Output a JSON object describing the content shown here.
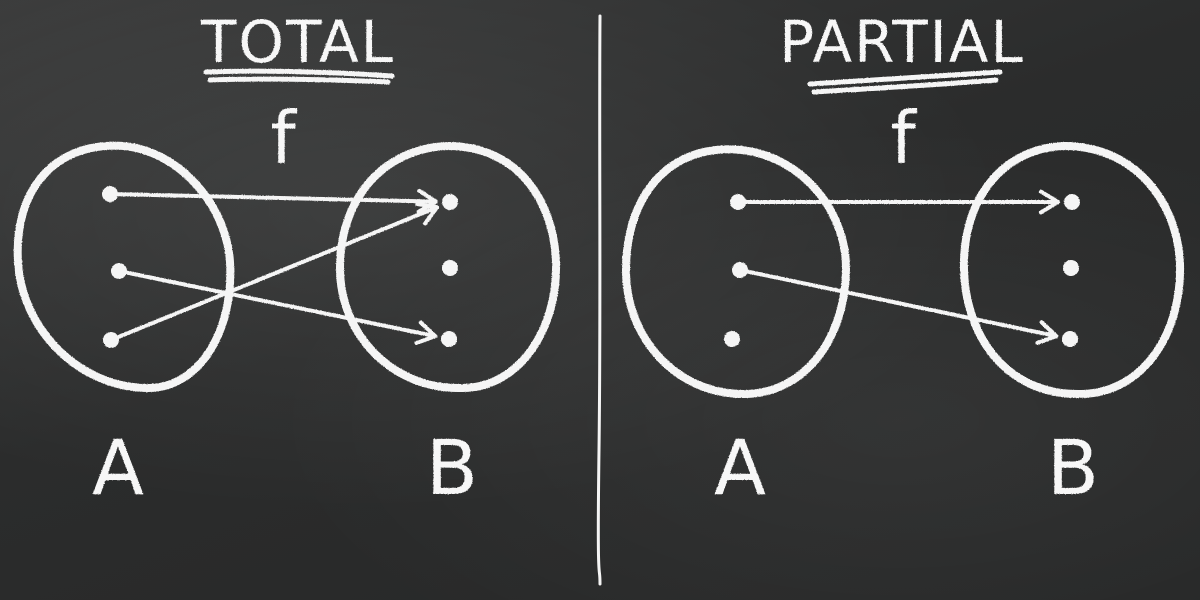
{
  "panels": [
    {
      "title": "TOTAL",
      "function_label": "f",
      "domain_label": "A",
      "codomain_label": "B",
      "mappings": [
        [
          0,
          0
        ],
        [
          1,
          2
        ],
        [
          2,
          0
        ]
      ]
    },
    {
      "title": "PARTIAL",
      "function_label": "f",
      "domain_label": "A",
      "codomain_label": "B",
      "mappings": [
        [
          0,
          0
        ],
        [
          1,
          2
        ]
      ]
    }
  ],
  "colors": {
    "board": "#2d2e2e",
    "chalk": "#f5f5f5"
  }
}
